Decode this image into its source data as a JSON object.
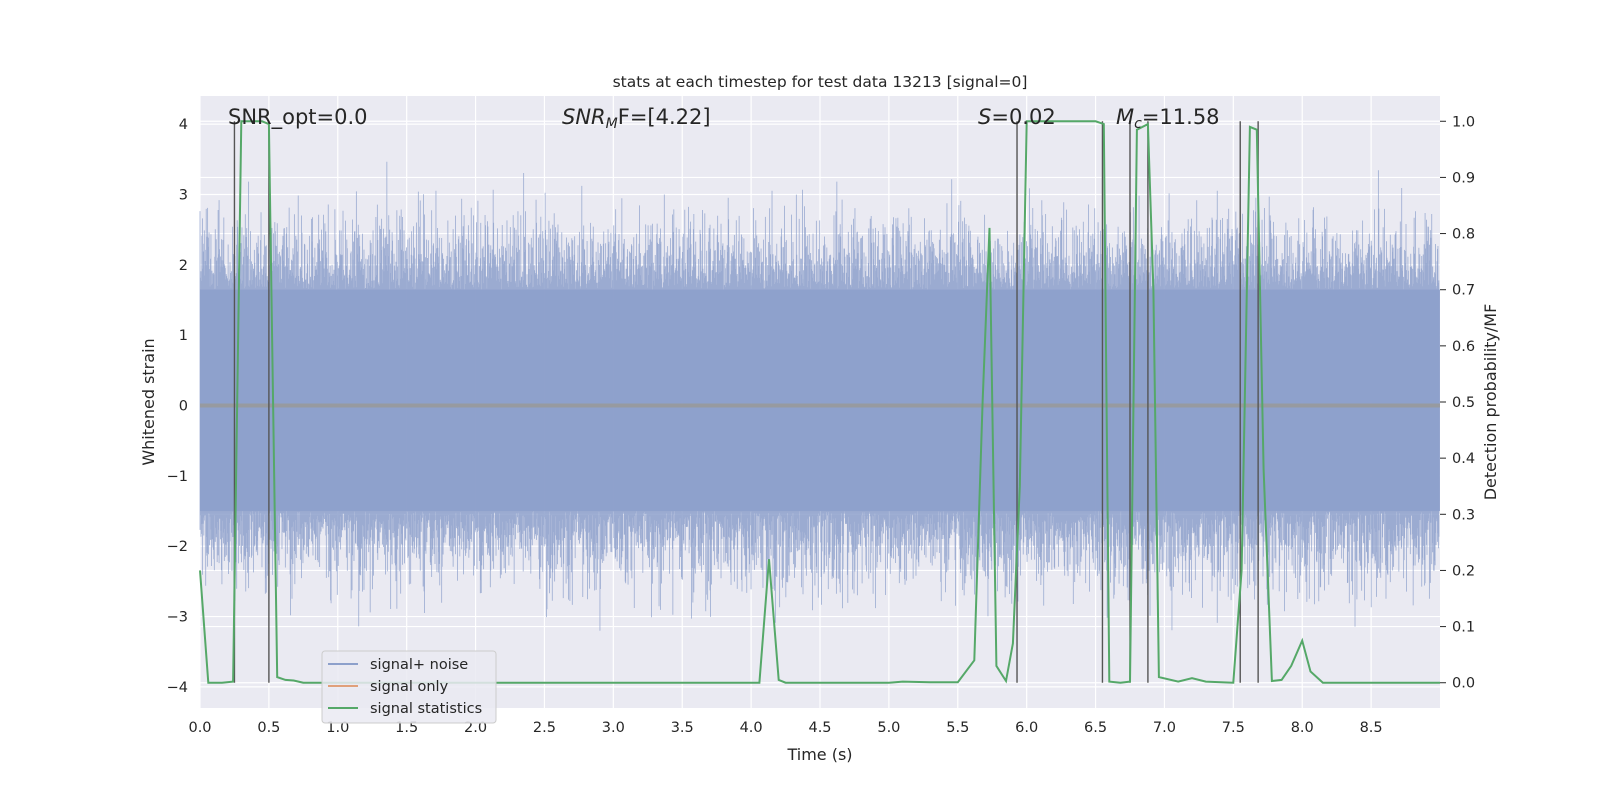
{
  "chart_data": {
    "type": "line",
    "title": "stats at each timestep for test data 13213 [signal=0]",
    "xlabel": "Time (s)",
    "ylabel_left": "Whitened strain",
    "ylabel_right": "Detection probability/MF",
    "xlim": [
      0.0,
      9.0
    ],
    "ylim_left": [
      -4.3,
      4.4
    ],
    "ylim_right": [
      -0.045,
      1.045
    ],
    "x_ticks": [
      "0.0",
      "0.5",
      "1.0",
      "1.5",
      "2.0",
      "2.5",
      "3.0",
      "3.5",
      "4.0",
      "4.5",
      "5.0",
      "5.5",
      "6.0",
      "6.5",
      "7.0",
      "7.5",
      "8.0",
      "8.5"
    ],
    "y_ticks_left": [
      "4",
      "3",
      "2",
      "1",
      "0",
      "−1",
      "−2",
      "−3",
      "−4"
    ],
    "y_ticks_right": [
      "1.0",
      "0.9",
      "0.8",
      "0.7",
      "0.6",
      "0.5",
      "0.4",
      "0.3",
      "0.2",
      "0.1",
      "0.0"
    ],
    "annotations": {
      "snr_opt": "SNR_opt=0.0",
      "snr_mf_sym": "SNR",
      "snr_mf_sub": "M",
      "snr_mf_rest": "F=[4.22]",
      "s_sym": "S",
      "s_rest": "=0.02",
      "mc_sym": "M",
      "mc_sub": "c",
      "mc_rest": "=11.58"
    },
    "legend": {
      "placement": "lower-left",
      "entries": [
        "signal+ noise",
        "signal only",
        "signal statistics"
      ]
    },
    "series": [
      {
        "name": "signal+ noise",
        "color": "#8da0cb",
        "style": "dense noise band",
        "core_range": [
          -1.5,
          1.65
        ],
        "envelope_range": [
          -3.9,
          3.5
        ]
      },
      {
        "name": "signal only",
        "color": "#e0a07a",
        "values": "flat at 0"
      },
      {
        "name": "signal statistics",
        "color": "#55a868",
        "axis": "right",
        "x": [
          0.0,
          0.06,
          0.16,
          0.24,
          0.3,
          0.35,
          0.4,
          0.45,
          0.5,
          0.56,
          0.62,
          0.68,
          0.75,
          1.0,
          1.5,
          2.0,
          2.5,
          3.0,
          3.5,
          4.06,
          4.13,
          4.2,
          4.25,
          4.4,
          5.0,
          5.1,
          5.3,
          5.5,
          5.62,
          5.68,
          5.73,
          5.78,
          5.85,
          5.9,
          5.95,
          6.0,
          6.2,
          6.5,
          6.56,
          6.6,
          6.68,
          6.75,
          6.8,
          6.88,
          6.92,
          6.96,
          7.1,
          7.2,
          7.3,
          7.5,
          7.56,
          7.62,
          7.67,
          7.72,
          7.78,
          7.85,
          7.92,
          8.0,
          8.06,
          8.15,
          8.5,
          9.0
        ],
        "values": [
          0.2,
          0.0,
          0.0,
          0.002,
          1.0,
          1.0,
          1.0,
          1.0,
          0.995,
          0.01,
          0.005,
          0.004,
          0.0,
          0.0,
          0.0,
          0.0,
          0.0,
          0.0,
          0.0,
          0.0,
          0.22,
          0.005,
          0.0,
          0.0,
          0.0,
          0.002,
          0.001,
          0.001,
          0.04,
          0.5,
          0.81,
          0.03,
          0.003,
          0.07,
          0.35,
          1.0,
          1.0,
          1.0,
          0.995,
          0.002,
          0.0,
          0.002,
          0.985,
          0.995,
          0.7,
          0.01,
          0.002,
          0.008,
          0.002,
          0.0,
          0.2,
          0.99,
          0.985,
          0.38,
          0.003,
          0.005,
          0.03,
          0.075,
          0.02,
          0.0,
          0.0,
          0.0
        ]
      }
    ],
    "vertical_markers_s": [
      0.25,
      0.5,
      5.93,
      6.55,
      6.75,
      6.88,
      7.55,
      7.68
    ]
  }
}
